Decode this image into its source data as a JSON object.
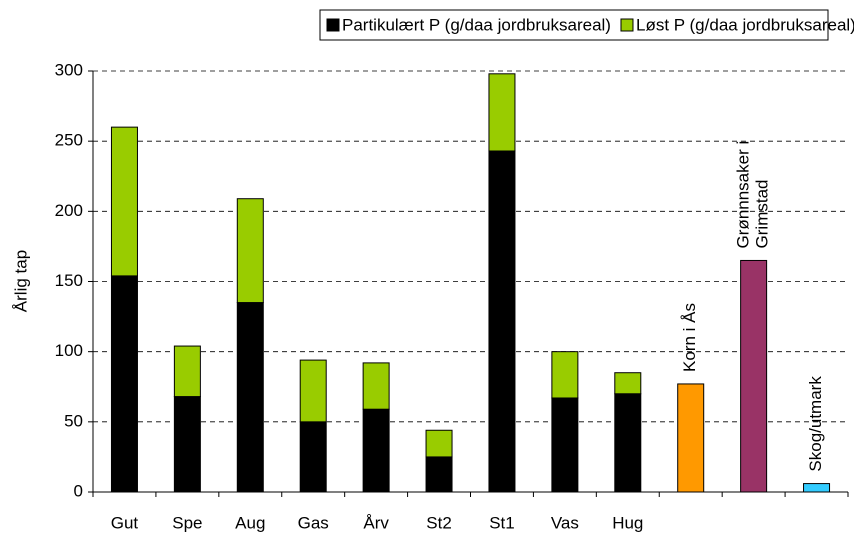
{
  "chart_data": {
    "type": "stacked_bar",
    "y_label": "Årlig tap",
    "categories": [
      "Gut",
      "Spe",
      "Aug",
      "Gas",
      "Årv",
      "St2",
      "St1",
      "Vas",
      "Hug",
      null,
      null,
      null
    ],
    "series": [
      {
        "name": "Partikulært P (g/daa jordbruksareal)",
        "color": "#000000",
        "values": [
          154,
          68,
          135,
          50,
          59,
          25,
          243,
          67,
          70,
          null,
          null,
          null
        ]
      },
      {
        "name": "Løst P (g/daa jordbruksareal)",
        "color": "#99cc00",
        "values": [
          106,
          36,
          74,
          44,
          33,
          19,
          55,
          33,
          15,
          null,
          null,
          null
        ]
      }
    ],
    "extra_bars": [
      {
        "label": [
          "Korn i Ås"
        ],
        "color": "#ff9900",
        "value": 77
      },
      {
        "label": [
          "Grønnnsaker i",
          "Grimstad"
        ],
        "color": "#993366",
        "value": 165
      },
      {
        "label": [
          "Skog/utmark"
        ],
        "color": "#33ccff",
        "value": 6
      }
    ],
    "ylim": [
      0,
      300
    ],
    "yticks": [
      0,
      50,
      100,
      150,
      200,
      250,
      300
    ],
    "grid": true
  }
}
